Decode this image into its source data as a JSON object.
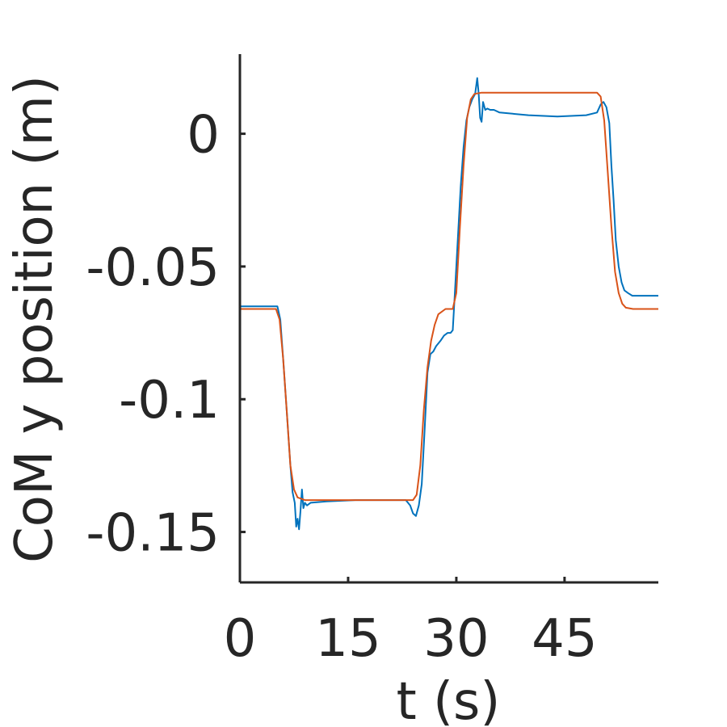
{
  "chart_data": {
    "type": "line",
    "title": "",
    "xlabel": "t (s)",
    "ylabel": "CoM y position (m)",
    "xlim": [
      0,
      58
    ],
    "ylim": [
      -0.169,
      0.03
    ],
    "xticks": [
      0,
      15,
      30,
      45
    ],
    "xtick_labels": [
      "0",
      "15",
      "30",
      "45"
    ],
    "yticks": [
      0,
      -0.05,
      -0.1,
      -0.15
    ],
    "ytick_labels": [
      "0",
      "-0.05",
      "-0.1",
      "-0.15"
    ],
    "grid": false,
    "legend": "none",
    "series": [
      {
        "color": "#0072BD",
        "x": [
          0,
          5.2,
          5.6,
          6.0,
          6.5,
          7.0,
          7.3,
          7.6,
          7.8,
          8.0,
          8.2,
          8.4,
          8.6,
          8.8,
          9.0,
          9.3,
          9.8,
          12,
          16,
          20,
          23,
          23.6,
          24.0,
          24.4,
          24.8,
          25.2,
          25.6,
          26.0,
          26.4,
          26.8,
          27.2,
          27.8,
          28.3,
          28.8,
          29.2,
          29.5,
          29.8,
          30.2,
          30.6,
          31.0,
          31.4,
          31.8,
          32.2,
          32.6,
          32.9,
          33.1,
          33.3,
          33.5,
          33.7,
          34.0,
          34.3,
          34.7,
          35.2,
          36,
          40,
          44,
          48,
          49.5,
          50.0,
          50.4,
          50.8,
          51.2,
          51.5,
          51.8,
          52.1,
          52.5,
          52.9,
          53.3,
          53.8,
          54.4,
          55.2,
          56.2,
          58
        ],
        "y": [
          -0.065,
          -0.065,
          -0.07,
          -0.085,
          -0.105,
          -0.125,
          -0.135,
          -0.139,
          -0.148,
          -0.145,
          -0.149,
          -0.142,
          -0.134,
          -0.141,
          -0.139,
          -0.14,
          -0.139,
          -0.1385,
          -0.138,
          -0.138,
          -0.138,
          -0.14,
          -0.143,
          -0.144,
          -0.14,
          -0.132,
          -0.112,
          -0.09,
          -0.083,
          -0.082,
          -0.08,
          -0.078,
          -0.076,
          -0.075,
          -0.075,
          -0.074,
          -0.06,
          -0.04,
          -0.02,
          -0.005,
          0.005,
          0.01,
          0.013,
          0.015,
          0.021,
          0.015,
          0.006,
          0.0045,
          0.012,
          0.009,
          0.0095,
          0.009,
          0.009,
          0.008,
          0.007,
          0.0065,
          0.007,
          0.008,
          0.011,
          0.012,
          0.01,
          0.004,
          -0.012,
          -0.025,
          -0.04,
          -0.05,
          -0.056,
          -0.059,
          -0.06,
          -0.061,
          -0.061,
          -0.061,
          -0.061
        ]
      },
      {
        "color": "#D95319",
        "x": [
          0,
          5.0,
          5.5,
          6.0,
          6.5,
          7.0,
          7.5,
          8.0,
          9.0,
          24.0,
          24.5,
          25.0,
          25.5,
          26.0,
          26.5,
          27.0,
          27.5,
          28.5,
          29.5,
          30.0,
          30.5,
          31.0,
          31.5,
          32.0,
          32.5,
          33.5,
          35,
          49.5,
          50.0,
          50.5,
          51.0,
          51.5,
          52.0,
          52.5,
          53.0,
          53.5,
          54.5,
          58
        ],
        "y": [
          -0.066,
          -0.066,
          -0.07,
          -0.085,
          -0.105,
          -0.125,
          -0.134,
          -0.137,
          -0.138,
          -0.138,
          -0.136,
          -0.125,
          -0.104,
          -0.088,
          -0.078,
          -0.072,
          -0.068,
          -0.066,
          -0.066,
          -0.06,
          -0.035,
          -0.012,
          0.006,
          0.013,
          0.015,
          0.0155,
          0.0155,
          0.0155,
          0.014,
          0.005,
          -0.015,
          -0.035,
          -0.052,
          -0.06,
          -0.064,
          -0.0655,
          -0.066,
          -0.066
        ]
      }
    ]
  }
}
